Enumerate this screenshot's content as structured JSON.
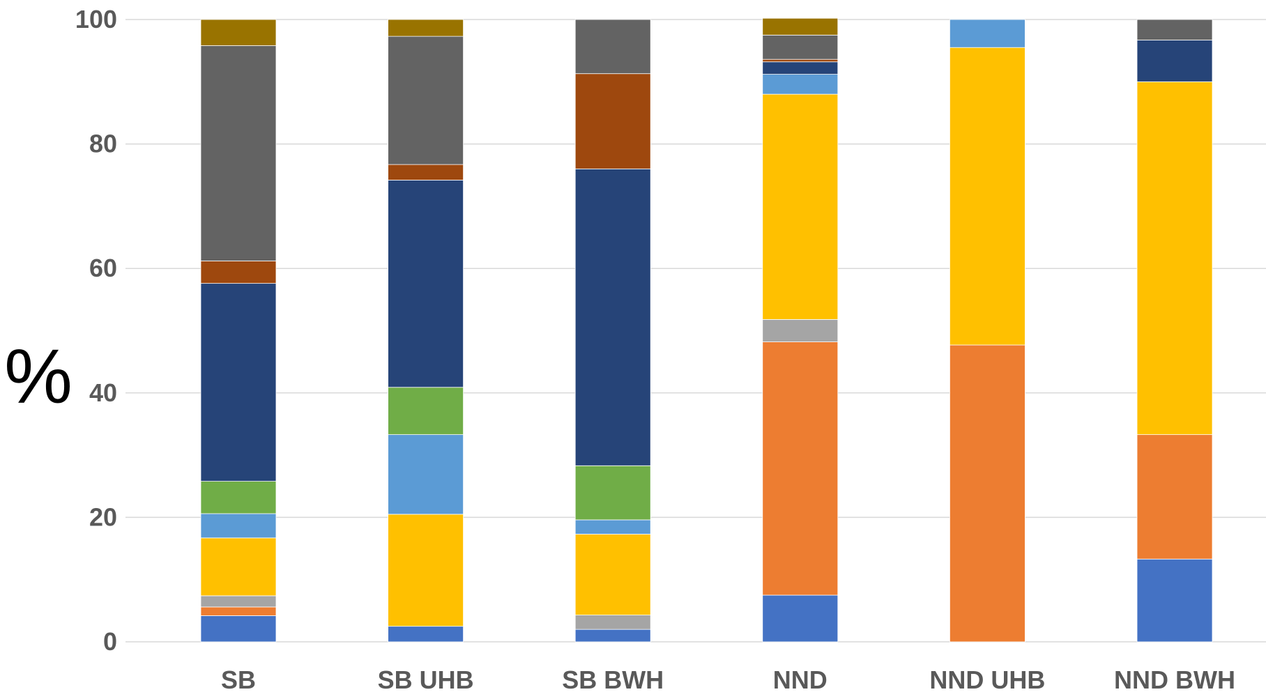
{
  "chart_data": {
    "type": "bar",
    "stacked": true,
    "title": "",
    "xlabel": "",
    "ylabel": "%",
    "ylim": [
      0,
      100
    ],
    "yticks": [
      "0",
      "20",
      "40",
      "60",
      "80",
      "100"
    ],
    "grid": true,
    "legend": "none",
    "categories": [
      "SB",
      "SB UHB",
      "SB BWH",
      "NND",
      "NND UHB",
      "NND BWH"
    ],
    "series": [
      {
        "color": "#4472C4",
        "values": [
          4.2,
          2.5,
          2.0,
          7.5,
          0,
          13.3
        ]
      },
      {
        "color": "#ED7D31",
        "values": [
          1.4,
          0,
          0,
          40.7,
          47.7,
          20.0
        ]
      },
      {
        "color": "#A5A5A5",
        "values": [
          1.8,
          0,
          2.3,
          3.6,
          0,
          0
        ]
      },
      {
        "color": "#FFC000",
        "values": [
          9.3,
          18.0,
          13.0,
          36.2,
          47.8,
          56.7
        ]
      },
      {
        "color": "#5B9BD5",
        "values": [
          3.9,
          12.8,
          2.3,
          3.2,
          4.5,
          0
        ]
      },
      {
        "color": "#70AD47",
        "values": [
          5.2,
          7.6,
          8.7,
          0,
          0,
          0
        ]
      },
      {
        "color": "#264478",
        "values": [
          31.8,
          33.3,
          47.7,
          2.0,
          0,
          6.7
        ]
      },
      {
        "color": "#9E480E",
        "values": [
          3.6,
          2.5,
          15.3,
          0.4,
          0,
          0
        ]
      },
      {
        "color": "#636363",
        "values": [
          34.6,
          20.6,
          8.7,
          3.9,
          0,
          3.3
        ]
      },
      {
        "color": "#997300",
        "values": [
          4.2,
          2.7,
          0,
          2.7,
          0,
          0
        ]
      }
    ]
  }
}
